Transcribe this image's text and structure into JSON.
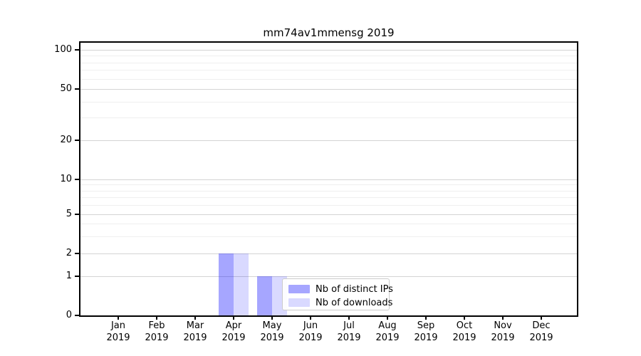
{
  "chart_data": {
    "type": "bar",
    "title": "mm74av1mmensg 2019",
    "year_label": "2019",
    "categories": [
      "Jan",
      "Feb",
      "Mar",
      "Apr",
      "May",
      "Jun",
      "Jul",
      "Aug",
      "Sep",
      "Oct",
      "Nov",
      "Dec"
    ],
    "series": [
      {
        "name": "Nb of distinct IPs",
        "color": "#0000ff",
        "alpha": 0.35,
        "values": [
          0,
          0,
          0,
          2,
          1,
          0,
          0,
          0,
          0,
          0,
          0,
          0
        ]
      },
      {
        "name": "Nb of downloads",
        "color": "#0000ff",
        "alpha": 0.15,
        "values": [
          0,
          0,
          0,
          2,
          1,
          0,
          0,
          0,
          0,
          0,
          0,
          0
        ]
      }
    ],
    "xlabel": "",
    "ylabel": "",
    "yscale": "symlog",
    "ylim": [
      0,
      100
    ],
    "yticks_major": [
      0,
      1,
      2,
      5,
      10,
      20,
      50,
      100
    ],
    "yticks_minor": [
      3,
      4,
      6,
      7,
      8,
      9,
      30,
      40,
      60,
      70,
      80,
      90
    ],
    "grid": "on",
    "legend_position": "lower-center"
  },
  "colors": {
    "axes": "#000000",
    "grid_major": "#d4d4d4",
    "grid_minor": "#efefef",
    "background": "#ffffff",
    "legend_border": "#cccccc"
  }
}
